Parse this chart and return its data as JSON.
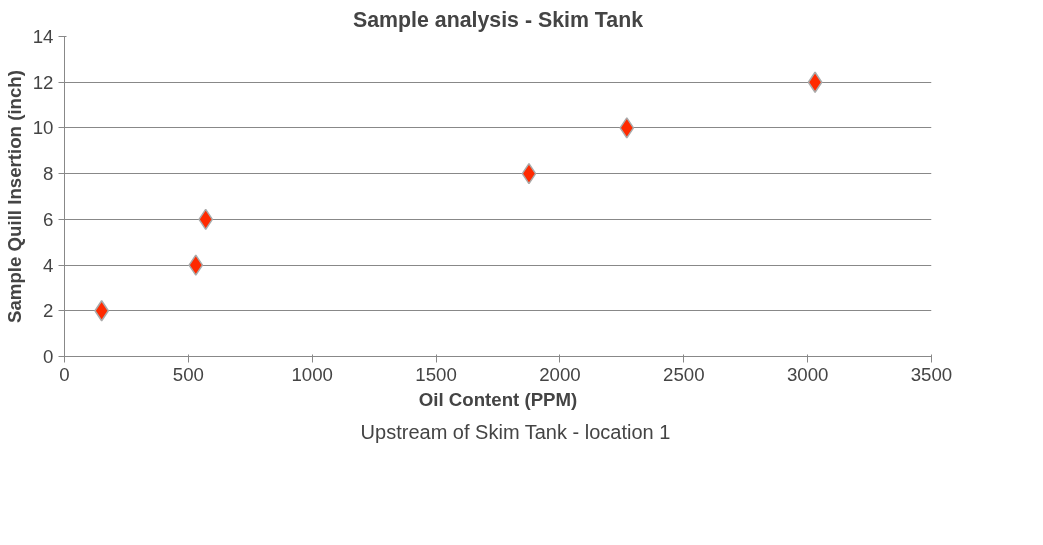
{
  "chart_data": {
    "type": "scatter",
    "title": "Sample analysis - Skim Tank",
    "xlabel": "Oil Content (PPM)",
    "ylabel": "Sample Quill Insertion (inch)",
    "series": [
      {
        "name": "Upstream of Skim Tank - location 1",
        "color": "#ff2a00",
        "x": [
          150,
          530,
          570,
          1875,
          2270,
          3030
        ],
        "values": [
          2,
          4,
          6,
          8,
          10,
          12
        ]
      }
    ],
    "xlim": [
      0,
      3500
    ],
    "xticks": [
      0,
      500,
      1000,
      1500,
      2000,
      2500,
      3000,
      3500
    ],
    "ylim": [
      0,
      14
    ],
    "yticks": [
      0,
      2,
      4,
      6,
      8,
      10,
      12,
      14
    ],
    "grid": "y",
    "legend": "bottom",
    "marker": "diamond"
  }
}
